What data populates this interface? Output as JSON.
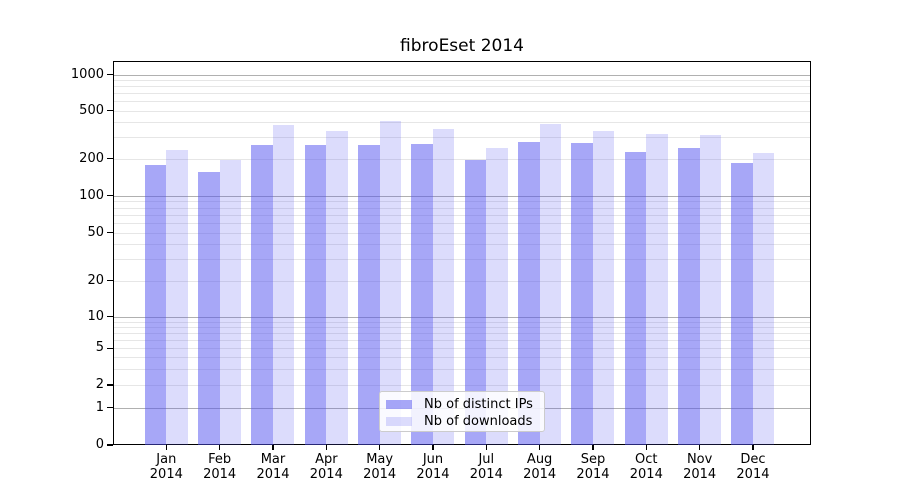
{
  "chart_data": {
    "type": "bar",
    "title": "fibroEset 2014",
    "categories": [
      "Jan 2014",
      "Feb 2014",
      "Mar 2014",
      "Apr 2014",
      "May 2014",
      "Jun 2014",
      "Jul 2014",
      "Aug 2014",
      "Sep 2014",
      "Oct 2014",
      "Nov 2014",
      "Dec 2014"
    ],
    "x_tick_months": [
      "Jan",
      "Feb",
      "Mar",
      "Apr",
      "May",
      "Jun",
      "Jul",
      "Aug",
      "Sep",
      "Oct",
      "Nov",
      "Dec"
    ],
    "x_tick_year": "2014",
    "series": [
      {
        "name": "Nb of distinct IPs",
        "color": "rgba(80,80,240,0.5)",
        "values": [
          179,
          157,
          259,
          258,
          262,
          266,
          195,
          276,
          272,
          227,
          243,
          186
        ]
      },
      {
        "name": "Nb of downloads",
        "color": "rgba(80,80,240,0.2)",
        "values": [
          237,
          196,
          382,
          340,
          411,
          354,
          243,
          391,
          342,
          319,
          313,
          221
        ]
      }
    ],
    "xlabel": "",
    "ylabel": "",
    "y_scale": "log-like (compressed below 10, zero baseline shown)",
    "y_tick_labels": [
      "0",
      "1",
      "2",
      "5",
      "10",
      "20",
      "50",
      "100",
      "200",
      "500",
      "1000"
    ],
    "y_ticks": [
      0,
      1,
      2,
      5,
      10,
      20,
      50,
      100,
      200,
      500,
      1000
    ],
    "ylim": [
      0,
      1300
    ],
    "grid": {
      "major_color": "#b0b0b0",
      "minor_color": "#e6e6e6",
      "major_at": [
        1,
        10,
        100,
        1000
      ]
    },
    "legend_position": "lower center inside plot",
    "axis_color": "#000000"
  }
}
